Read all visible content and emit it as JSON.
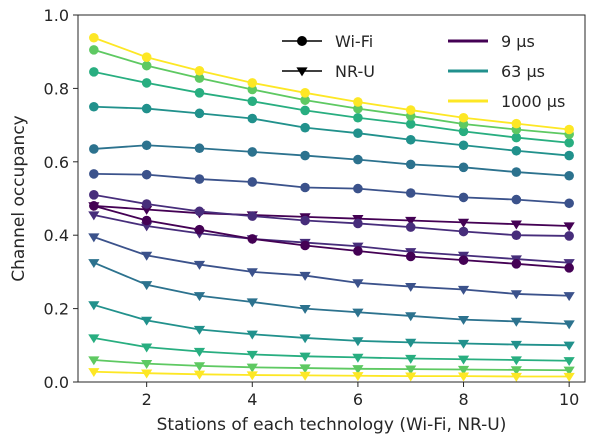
{
  "chart_data": {
    "type": "line",
    "title": "",
    "xlabel": "Stations of each technology (Wi-Fi, NR-U)",
    "ylabel": "Channel occupancy",
    "xlim": [
      0.7,
      10.3
    ],
    "ylim": [
      0.0,
      1.0
    ],
    "x": [
      1,
      2,
      3,
      4,
      5,
      6,
      7,
      8,
      9,
      10
    ],
    "xticks": [
      2,
      4,
      6,
      8,
      10
    ],
    "yticks": [
      0.0,
      0.2,
      0.4,
      0.6,
      0.8,
      1.0
    ],
    "xtick_labels": [
      "2",
      "4",
      "6",
      "8",
      "10"
    ],
    "ytick_labels": [
      "0.0",
      "0.2",
      "0.4",
      "0.6",
      "0.8",
      "1.0"
    ],
    "grid": false,
    "colormap": "viridis",
    "legend": {
      "placement": "top-right",
      "markers": [
        {
          "label": "Wi-Fi",
          "marker": "circle"
        },
        {
          "label": "NR-U",
          "marker": "triangle-down"
        }
      ],
      "colors": [
        {
          "label": "9 μs",
          "color": "#440154"
        },
        {
          "label": "63 μs",
          "color": "#21908d"
        },
        {
          "label": "1000 μs",
          "color": "#fde725"
        }
      ]
    },
    "series": [
      {
        "technology": "Wi-Fi",
        "marker": "circle",
        "color": "#440154",
        "values": [
          0.48,
          0.44,
          0.415,
          0.39,
          0.372,
          0.357,
          0.342,
          0.332,
          0.322,
          0.311
        ]
      },
      {
        "technology": "Wi-Fi",
        "marker": "circle",
        "color": "#472d7b",
        "values": [
          0.51,
          0.485,
          0.465,
          0.452,
          0.44,
          0.432,
          0.422,
          0.41,
          0.4,
          0.398
        ]
      },
      {
        "technology": "Wi-Fi",
        "marker": "circle",
        "color": "#3b528b",
        "values": [
          0.567,
          0.565,
          0.553,
          0.545,
          0.53,
          0.527,
          0.515,
          0.503,
          0.497,
          0.487
        ]
      },
      {
        "technology": "Wi-Fi",
        "marker": "circle",
        "color": "#2c728e",
        "values": [
          0.635,
          0.645,
          0.637,
          0.627,
          0.617,
          0.606,
          0.593,
          0.585,
          0.572,
          0.562
        ]
      },
      {
        "technology": "Wi-Fi",
        "marker": "circle",
        "color": "#21918c",
        "values": [
          0.75,
          0.745,
          0.732,
          0.718,
          0.693,
          0.678,
          0.66,
          0.645,
          0.63,
          0.617
        ]
      },
      {
        "technology": "Wi-Fi",
        "marker": "circle",
        "color": "#28ae80",
        "values": [
          0.845,
          0.815,
          0.788,
          0.765,
          0.74,
          0.72,
          0.703,
          0.683,
          0.666,
          0.652
        ]
      },
      {
        "technology": "Wi-Fi",
        "marker": "circle",
        "color": "#5ec962",
        "values": [
          0.905,
          0.862,
          0.828,
          0.797,
          0.768,
          0.745,
          0.725,
          0.703,
          0.688,
          0.675
        ]
      },
      {
        "technology": "Wi-Fi",
        "marker": "circle",
        "color": "#fde725",
        "values": [
          0.938,
          0.885,
          0.848,
          0.815,
          0.788,
          0.763,
          0.741,
          0.72,
          0.704,
          0.688
        ]
      },
      {
        "technology": "NR-U",
        "marker": "triangle-down",
        "color": "#440154",
        "values": [
          0.48,
          0.47,
          0.46,
          0.455,
          0.45,
          0.445,
          0.44,
          0.435,
          0.43,
          0.425
        ]
      },
      {
        "technology": "NR-U",
        "marker": "triangle-down",
        "color": "#472d7b",
        "values": [
          0.455,
          0.425,
          0.405,
          0.39,
          0.38,
          0.37,
          0.355,
          0.345,
          0.335,
          0.325
        ]
      },
      {
        "technology": "NR-U",
        "marker": "triangle-down",
        "color": "#3b528b",
        "values": [
          0.395,
          0.345,
          0.32,
          0.3,
          0.29,
          0.27,
          0.26,
          0.252,
          0.24,
          0.235
        ]
      },
      {
        "technology": "NR-U",
        "marker": "triangle-down",
        "color": "#2c728e",
        "values": [
          0.325,
          0.265,
          0.235,
          0.218,
          0.2,
          0.19,
          0.18,
          0.17,
          0.165,
          0.158
        ]
      },
      {
        "technology": "NR-U",
        "marker": "triangle-down",
        "color": "#21918c",
        "values": [
          0.21,
          0.168,
          0.143,
          0.13,
          0.12,
          0.112,
          0.108,
          0.105,
          0.102,
          0.1
        ]
      },
      {
        "technology": "NR-U",
        "marker": "triangle-down",
        "color": "#28ae80",
        "values": [
          0.12,
          0.095,
          0.083,
          0.075,
          0.07,
          0.067,
          0.064,
          0.062,
          0.06,
          0.058
        ]
      },
      {
        "technology": "NR-U",
        "marker": "triangle-down",
        "color": "#5ec962",
        "values": [
          0.06,
          0.05,
          0.044,
          0.04,
          0.038,
          0.036,
          0.035,
          0.034,
          0.033,
          0.032
        ]
      },
      {
        "technology": "NR-U",
        "marker": "triangle-down",
        "color": "#fde725",
        "values": [
          0.028,
          0.024,
          0.021,
          0.019,
          0.018,
          0.017,
          0.016,
          0.016,
          0.015,
          0.015
        ]
      }
    ]
  }
}
